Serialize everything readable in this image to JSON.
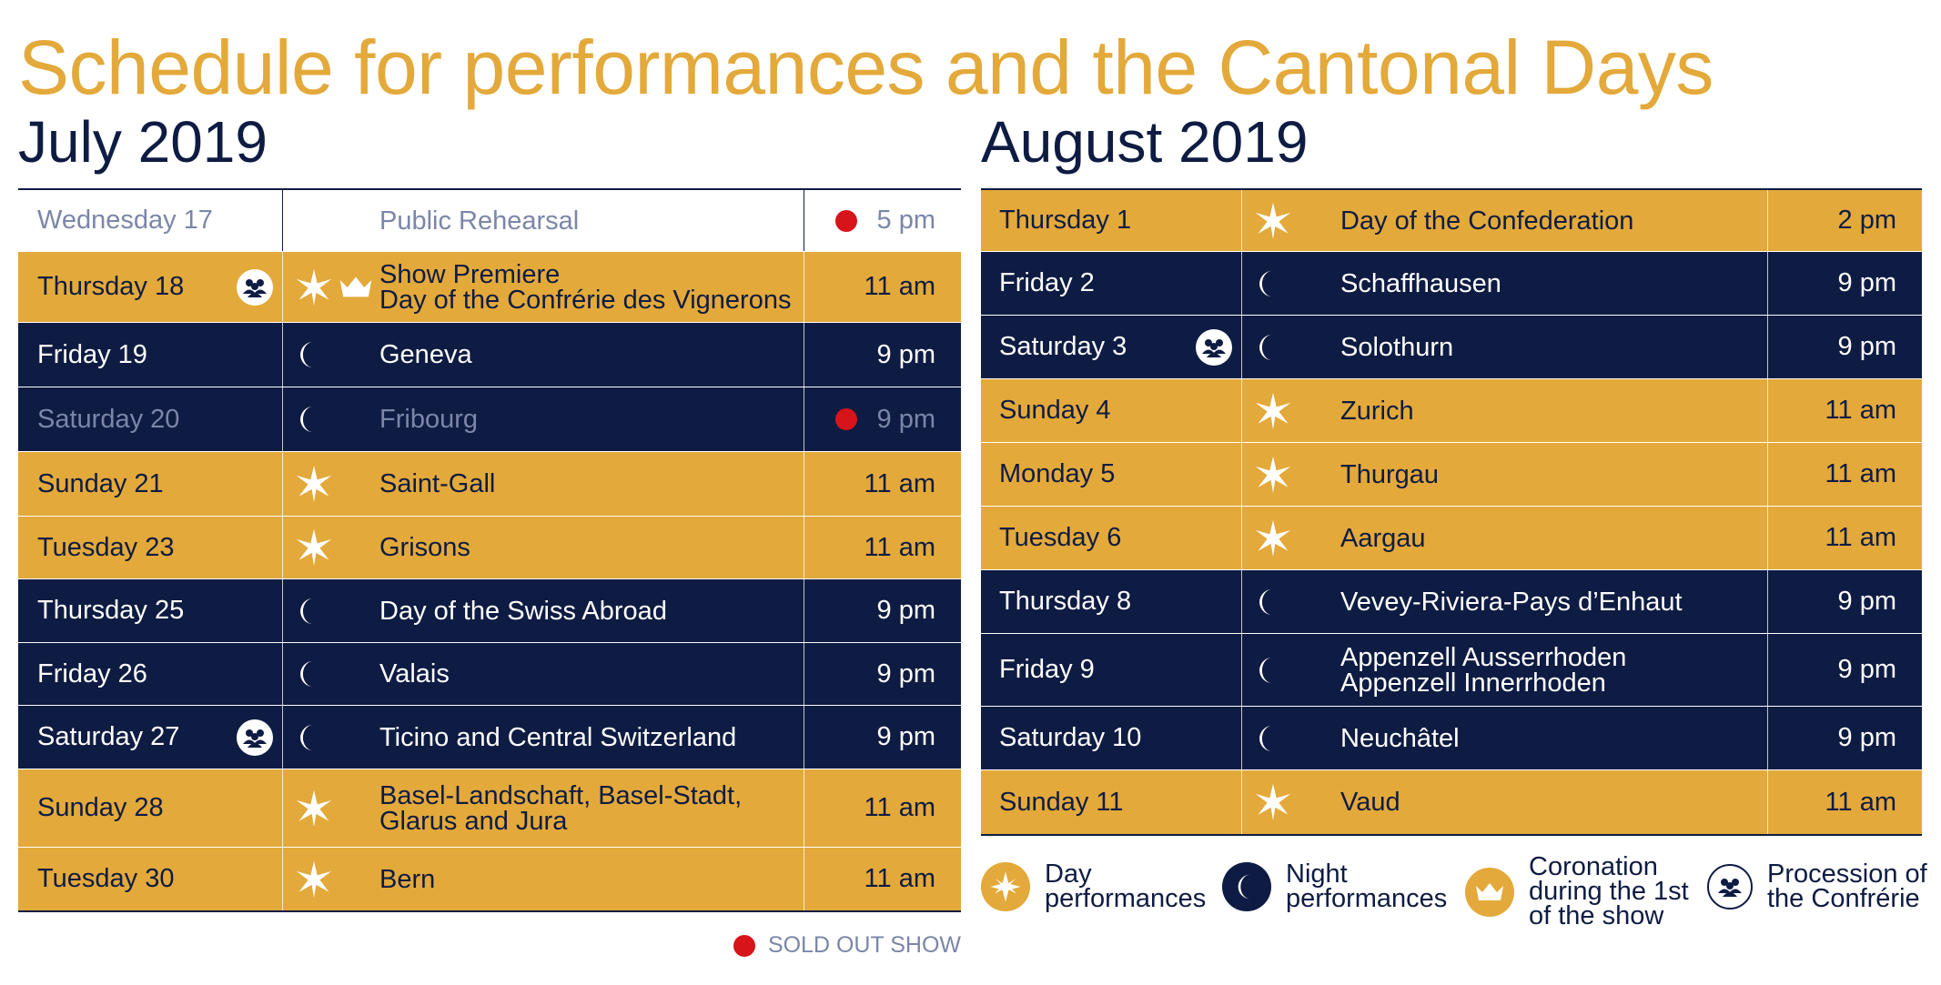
{
  "title": "Schedule for performances and the Cantonal Days",
  "colors": {
    "gold": "#e3a93a",
    "navy": "#0e1c43",
    "muted": "#7b86a8",
    "sold_out_red": "#d7141a"
  },
  "july": {
    "heading": "July 2019",
    "rows": [
      {
        "date": "Wednesday 17",
        "lines": [
          "Public Rehearsal"
        ],
        "time": "5 pm",
        "style": "white",
        "icons": [],
        "procession": false,
        "sold_out": true
      },
      {
        "date": "Thursday 18",
        "lines": [
          "Show Premiere",
          "Day of the Confrérie des Vignerons"
        ],
        "time": "11 am",
        "style": "day",
        "icons": [
          "star-icon",
          "crown-icon"
        ],
        "procession": true,
        "sold_out": false
      },
      {
        "date": "Friday 19",
        "lines": [
          "Geneva"
        ],
        "time": "9 pm",
        "style": "night",
        "icons": [
          "moon-icon"
        ],
        "procession": false,
        "sold_out": false
      },
      {
        "date": "Saturday 20",
        "lines": [
          "Fribourg"
        ],
        "time": "9 pm",
        "style": "night dim",
        "icons": [
          "moon-icon"
        ],
        "procession": false,
        "sold_out": true
      },
      {
        "date": "Sunday 21",
        "lines": [
          "Saint-Gall"
        ],
        "time": "11 am",
        "style": "day",
        "icons": [
          "star-icon"
        ],
        "procession": false,
        "sold_out": false
      },
      {
        "date": "Tuesday 23",
        "lines": [
          "Grisons"
        ],
        "time": "11 am",
        "style": "day",
        "icons": [
          "star-icon"
        ],
        "procession": false,
        "sold_out": false
      },
      {
        "date": "Thursday 25",
        "lines": [
          "Day of the Swiss Abroad"
        ],
        "time": "9 pm",
        "style": "night",
        "icons": [
          "moon-icon"
        ],
        "procession": false,
        "sold_out": false
      },
      {
        "date": "Friday 26",
        "lines": [
          "Valais"
        ],
        "time": "9 pm",
        "style": "night",
        "icons": [
          "moon-icon"
        ],
        "procession": false,
        "sold_out": false
      },
      {
        "date": "Saturday 27",
        "lines": [
          "Ticino and Central Switzerland"
        ],
        "time": "9 pm",
        "style": "night",
        "icons": [
          "moon-icon"
        ],
        "procession": true,
        "sold_out": false
      },
      {
        "date": "Sunday 28",
        "lines": [
          "Basel-Landschaft, Basel-Stadt,",
          "Glarus and Jura"
        ],
        "time": "11 am",
        "style": "day",
        "icons": [
          "star-icon"
        ],
        "procession": false,
        "sold_out": false
      },
      {
        "date": "Tuesday 30",
        "lines": [
          "Bern"
        ],
        "time": "11 am",
        "style": "day",
        "icons": [
          "star-icon"
        ],
        "procession": false,
        "sold_out": false
      }
    ],
    "sold_out_label": "SOLD OUT SHOW"
  },
  "august": {
    "heading": "August 2019",
    "rows": [
      {
        "date": "Thursday 1",
        "lines": [
          "Day of the Confederation"
        ],
        "time": "2 pm",
        "style": "day",
        "icons": [
          "star-icon"
        ],
        "procession": false,
        "sold_out": false
      },
      {
        "date": "Friday 2",
        "lines": [
          "Schaffhausen"
        ],
        "time": "9 pm",
        "style": "night",
        "icons": [
          "moon-icon"
        ],
        "procession": false,
        "sold_out": false
      },
      {
        "date": "Saturday 3",
        "lines": [
          "Solothurn"
        ],
        "time": "9 pm",
        "style": "night",
        "icons": [
          "moon-icon"
        ],
        "procession": true,
        "sold_out": false
      },
      {
        "date": "Sunday 4",
        "lines": [
          "Zurich"
        ],
        "time": "11 am",
        "style": "day",
        "icons": [
          "star-icon"
        ],
        "procession": false,
        "sold_out": false
      },
      {
        "date": "Monday 5",
        "lines": [
          "Thurgau"
        ],
        "time": "11 am",
        "style": "day",
        "icons": [
          "star-icon"
        ],
        "procession": false,
        "sold_out": false
      },
      {
        "date": "Tuesday 6",
        "lines": [
          "Aargau"
        ],
        "time": "11 am",
        "style": "day",
        "icons": [
          "star-icon"
        ],
        "procession": false,
        "sold_out": false
      },
      {
        "date": "Thursday 8",
        "lines": [
          "Vevey-Riviera-Pays d’Enhaut"
        ],
        "time": "9 pm",
        "style": "night",
        "icons": [
          "moon-icon"
        ],
        "procession": false,
        "sold_out": false
      },
      {
        "date": "Friday 9",
        "lines": [
          "Appenzell Ausserrhoden",
          "Appenzell Innerrhoden"
        ],
        "time": "9 pm",
        "style": "night",
        "icons": [
          "moon-icon"
        ],
        "procession": false,
        "sold_out": false
      },
      {
        "date": "Saturday 10",
        "lines": [
          "Neuchâtel"
        ],
        "time": "9 pm",
        "style": "night",
        "icons": [
          "moon-icon"
        ],
        "procession": false,
        "sold_out": false
      },
      {
        "date": "Sunday 11",
        "lines": [
          "Vaud"
        ],
        "time": "11 am",
        "style": "day",
        "icons": [
          "star-icon"
        ],
        "procession": false,
        "sold_out": false
      }
    ]
  },
  "legend": {
    "day": {
      "line1": "Day",
      "line2": "performances"
    },
    "night": {
      "line1": "Night",
      "line2": "performances"
    },
    "coronation": {
      "line1": "Coronation",
      "line2": "during the 1st",
      "line3": "of the show"
    },
    "procession": {
      "line1": "Procession of",
      "line2": "the Confrérie"
    }
  }
}
